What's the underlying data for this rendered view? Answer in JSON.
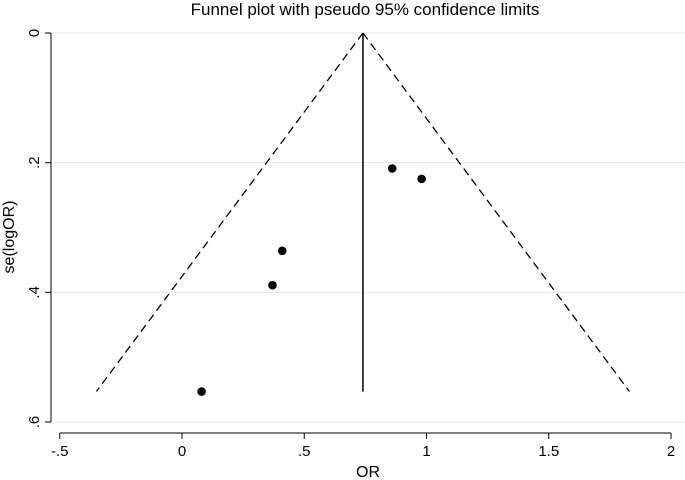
{
  "chart_data": {
    "type": "scatter",
    "title": "Funnel plot with pseudo 95% confidence limits",
    "xlabel": "OR",
    "ylabel": "se(logOR)",
    "xlim": [
      -0.5,
      2
    ],
    "ylim": [
      0.6,
      0
    ],
    "y_axis_reversed": true,
    "grid": "horizontal",
    "x_ticks": [
      {
        "value": -0.5,
        "label": "-.5"
      },
      {
        "value": 0,
        "label": "0"
      },
      {
        "value": 0.5,
        "label": ".5"
      },
      {
        "value": 1,
        "label": "1"
      },
      {
        "value": 1.5,
        "label": "1.5"
      },
      {
        "value": 2,
        "label": "2"
      }
    ],
    "y_ticks": [
      {
        "value": 0,
        "label": "0"
      },
      {
        "value": 0.2,
        "label": ".2"
      },
      {
        "value": 0.4,
        "label": ".4"
      },
      {
        "value": 0.6,
        "label": ".6"
      }
    ],
    "points": [
      {
        "x": 0.08,
        "y": 0.553
      },
      {
        "x": 0.37,
        "y": 0.389
      },
      {
        "x": 0.41,
        "y": 0.336
      },
      {
        "x": 0.86,
        "y": 0.209
      },
      {
        "x": 0.98,
        "y": 0.225
      }
    ],
    "pooled_estimate": {
      "x": 0.74,
      "y_range": [
        0,
        0.553
      ]
    },
    "confidence_limits": {
      "apex": {
        "x": 0.74,
        "y": 0
      },
      "left": {
        "x": -0.35,
        "y": 0.553
      },
      "right": {
        "x": 1.83,
        "y": 0.553
      }
    },
    "colors": {
      "points": "#000000",
      "lines": "#000000",
      "grid": "#e6e6e6",
      "background": "#ffffff"
    }
  }
}
